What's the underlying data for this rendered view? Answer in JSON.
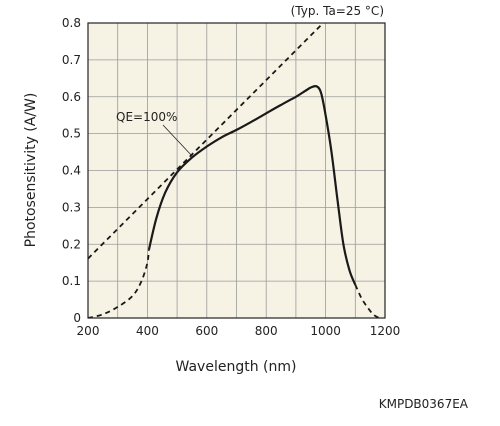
{
  "chart_data": {
    "type": "line",
    "xlabel": "Wavelength (nm)",
    "ylabel": "Photosensitivity (A/W)",
    "condition_note": "(Typ. Ta=25 °C)",
    "figure_code": "KMPDB0367EA",
    "xlim": [
      200,
      1200
    ],
    "ylim": [
      0,
      0.8
    ],
    "xticks": [
      "200",
      "400",
      "600",
      "800",
      "1000",
      "1200"
    ],
    "yticks": [
      "0",
      "0.1",
      "0.2",
      "0.3",
      "0.4",
      "0.5",
      "0.6",
      "0.7",
      "0.8"
    ],
    "grid": true,
    "background": "#f6f3e4",
    "series": [
      {
        "name": "QE=100%",
        "style": "dashed",
        "x": [
          200,
          1200
        ],
        "y": [
          0.161,
          0.968
        ]
      },
      {
        "style": "solid",
        "x": [
          405,
          430,
          460,
          500,
          550,
          600,
          650,
          700,
          750,
          800,
          850,
          900,
          930,
          950,
          970,
          985,
          1000,
          1020,
          1040,
          1060,
          1080,
          1100
        ],
        "y": [
          0.185,
          0.27,
          0.34,
          0.395,
          0.435,
          0.465,
          0.49,
          0.51,
          0.532,
          0.555,
          0.578,
          0.6,
          0.615,
          0.625,
          0.628,
          0.61,
          0.55,
          0.45,
          0.32,
          0.2,
          0.13,
          0.09
        ]
      },
      {
        "style": "dashed",
        "x": [
          200,
          250,
          300,
          350,
          380,
          400,
          405
        ],
        "y": [
          0,
          0.01,
          0.03,
          0.06,
          0.1,
          0.15,
          0.185
        ]
      },
      {
        "style": "dashed",
        "x": [
          1100,
          1120,
          1140,
          1160,
          1180
        ],
        "y": [
          0.09,
          0.055,
          0.03,
          0.01,
          0
        ]
      }
    ]
  }
}
